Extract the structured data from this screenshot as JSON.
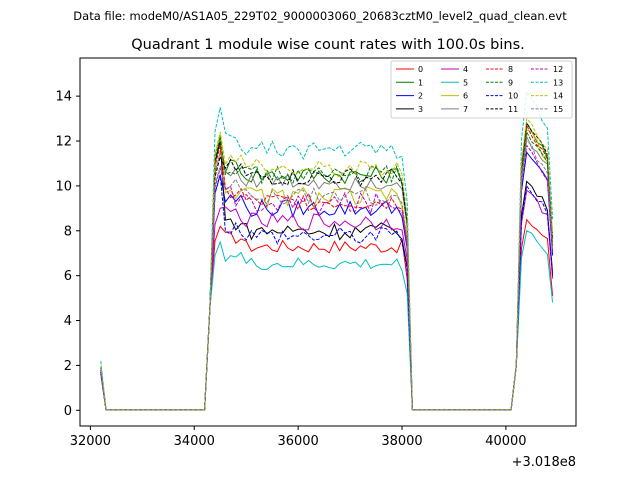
{
  "header": {
    "data_file": "Data file: modeM0/AS1A05_229T02_9000003060_20683cztM0_level2_quad_clean.evt"
  },
  "chart_data": {
    "type": "line",
    "title": "Quadrant 1 module wise count rates with 100.0s bins.",
    "xlabel": "",
    "ylabel": "",
    "x_offset_label": "+3.018e8",
    "xlim": [
      31800,
      41350
    ],
    "ylim": [
      -0.7,
      15.7
    ],
    "xticks": [
      32000,
      34000,
      36000,
      38000,
      40000
    ],
    "yticks": [
      0,
      2,
      4,
      6,
      8,
      10,
      12,
      14
    ],
    "grid": false,
    "legend_placement": "top-right",
    "legend_columns": 4,
    "segments": [
      {
        "start": 32200,
        "end": 34200
      },
      {
        "start": 34300,
        "end": 38100
      },
      {
        "start": 38200,
        "end": 40100
      },
      {
        "start": 40200,
        "end": 40900
      }
    ],
    "series": [
      {
        "name": "0",
        "color": "#ff0000",
        "dash": "solid",
        "start_value": 1.6,
        "level": 7.3,
        "wiggle": 0.3,
        "peak_first": 8.2,
        "end_level": 8.5
      },
      {
        "name": "1",
        "color": "#008000",
        "dash": "solid",
        "start_value": 1.8,
        "level": 10.5,
        "wiggle": 0.4,
        "peak_first": 12.0,
        "end_level": 12.8
      },
      {
        "name": "2",
        "color": "#0000ff",
        "dash": "solid",
        "start_value": 1.7,
        "level": 9.0,
        "wiggle": 0.4,
        "peak_first": 10.5,
        "end_level": 11.5
      },
      {
        "name": "3",
        "color": "#000000",
        "dash": "solid",
        "start_value": 1.7,
        "level": 8.0,
        "wiggle": 0.4,
        "peak_first": 12.0,
        "end_level": 10.2
      },
      {
        "name": "4",
        "color": "#bf00bf",
        "dash": "solid",
        "start_value": 1.7,
        "level": 8.4,
        "wiggle": 0.4,
        "peak_first": 9.0,
        "end_level": 9.8
      },
      {
        "name": "5",
        "color": "#00bfbf",
        "dash": "solid",
        "start_value": 1.6,
        "level": 6.5,
        "wiggle": 0.3,
        "peak_first": 7.5,
        "end_level": 8.0
      },
      {
        "name": "6",
        "color": "#bfbf00",
        "dash": "solid",
        "start_value": 1.9,
        "level": 9.5,
        "wiggle": 0.5,
        "peak_first": 12.3,
        "end_level": 12.5
      },
      {
        "name": "7",
        "color": "#808080",
        "dash": "solid",
        "start_value": 1.8,
        "level": 10.2,
        "wiggle": 0.4,
        "peak_first": 11.5,
        "end_level": 12.2
      },
      {
        "name": "8",
        "color": "#ff0000",
        "dash": "dashed",
        "start_value": 1.8,
        "level": 9.3,
        "wiggle": 0.4,
        "peak_first": 11.8,
        "end_level": 12.7
      },
      {
        "name": "9",
        "color": "#008000",
        "dash": "dashed",
        "start_value": 1.9,
        "level": 10.5,
        "wiggle": 0.4,
        "peak_first": 12.2,
        "end_level": 12.4
      },
      {
        "name": "10",
        "color": "#0000ff",
        "dash": "dashed",
        "start_value": 1.7,
        "level": 7.8,
        "wiggle": 0.4,
        "peak_first": 10.5,
        "end_level": 10.0
      },
      {
        "name": "11",
        "color": "#000000",
        "dash": "dashed",
        "start_value": 1.9,
        "level": 10.4,
        "wiggle": 0.4,
        "peak_first": 11.3,
        "end_level": 12.8
      },
      {
        "name": "12",
        "color": "#bf00bf",
        "dash": "dashed",
        "start_value": 1.8,
        "level": 9.2,
        "wiggle": 0.5,
        "peak_first": 10.8,
        "end_level": 11.8
      },
      {
        "name": "13",
        "color": "#00bfbf",
        "dash": "dashed",
        "start_value": 2.2,
        "level": 11.6,
        "wiggle": 0.4,
        "peak_first": 13.5,
        "end_level": 14.2
      },
      {
        "name": "14",
        "color": "#bfbf00",
        "dash": "dashed",
        "start_value": 2.0,
        "level": 10.8,
        "wiggle": 0.4,
        "peak_first": 12.4,
        "end_level": 13.0
      },
      {
        "name": "15",
        "color": "#808080",
        "dash": "dashed",
        "start_value": 1.9,
        "level": 9.5,
        "wiggle": 0.4,
        "peak_first": 10.9,
        "end_level": 12.0
      }
    ]
  }
}
